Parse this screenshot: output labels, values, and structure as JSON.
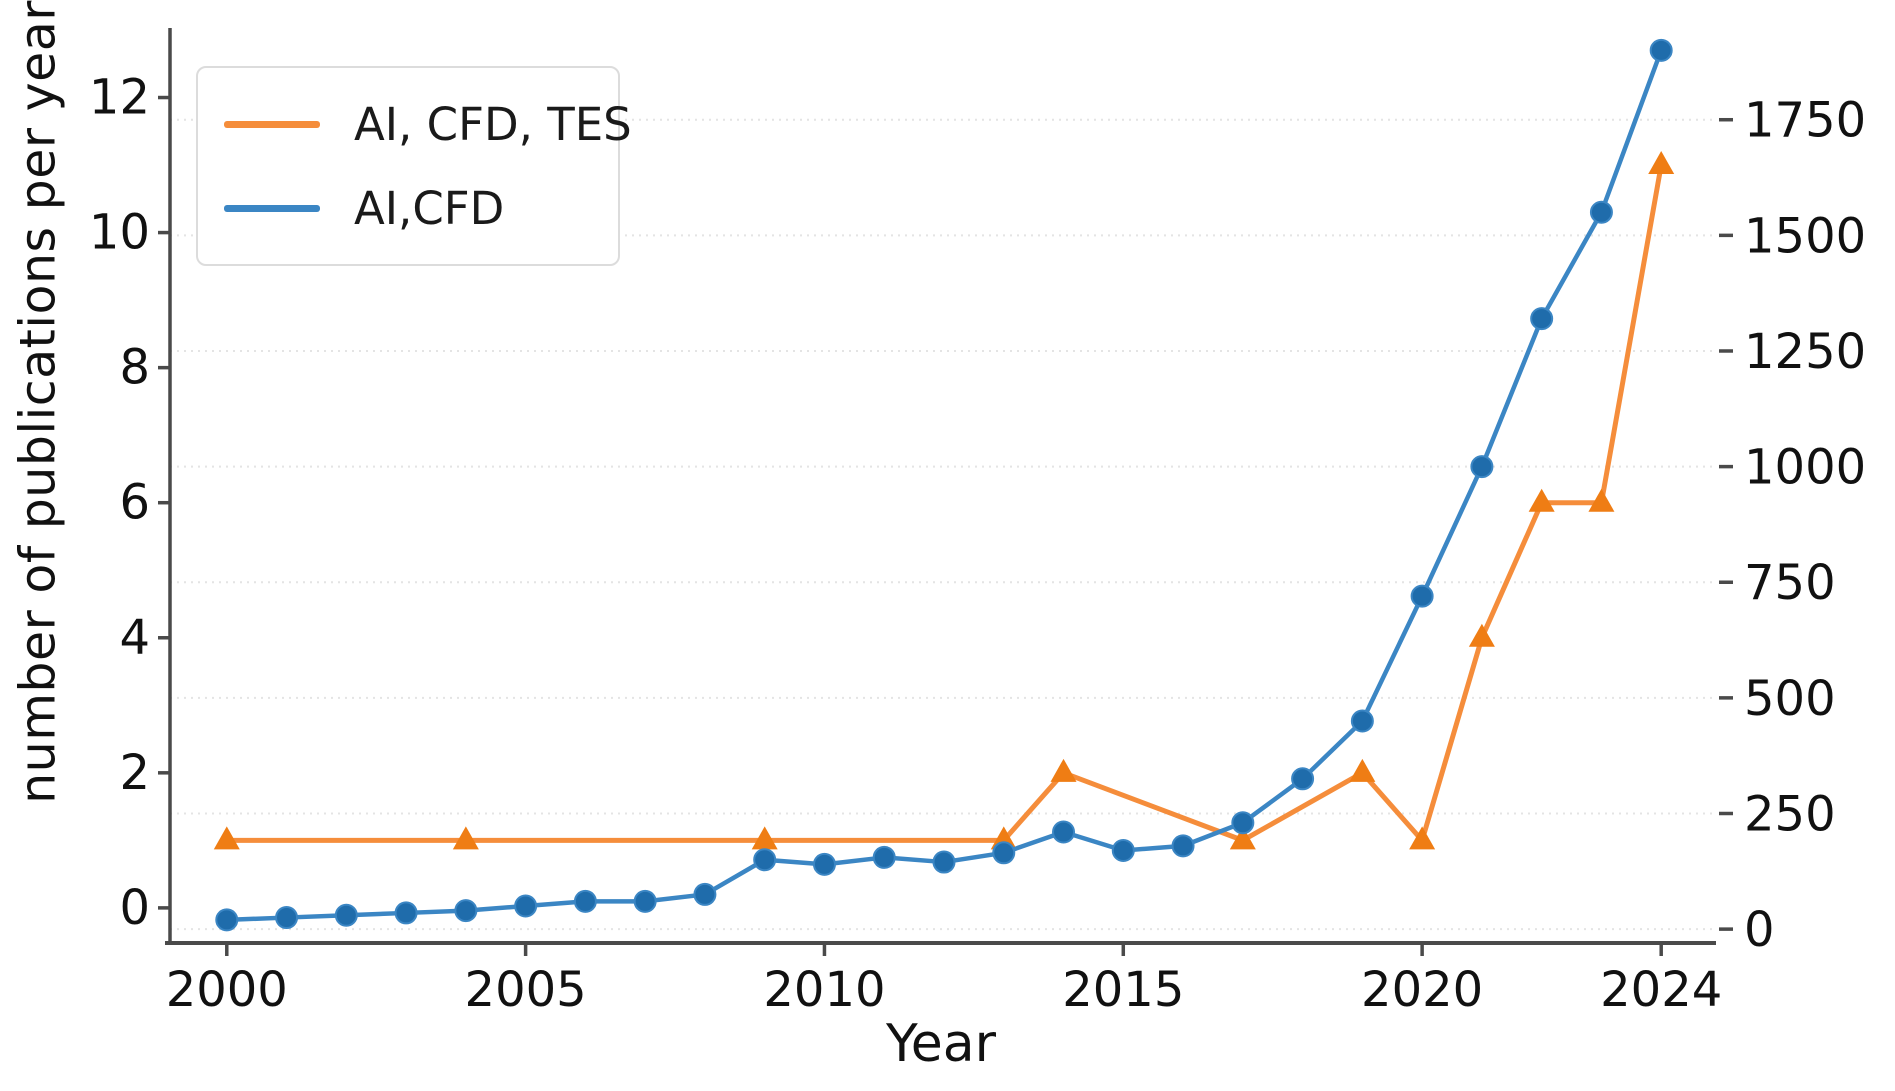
{
  "chart_data": {
    "type": "line",
    "title": "",
    "xlabel": "Year",
    "ylabel_left": "number of publications per year",
    "x_ticks": [
      2000,
      2005,
      2010,
      2015,
      2020,
      2024
    ],
    "left_ticks": [
      0,
      2,
      4,
      6,
      8,
      10,
      12
    ],
    "right_ticks": [
      0,
      250,
      500,
      750,
      1000,
      1250,
      1500,
      1750
    ],
    "xlim": [
      1999.05,
      2024.85
    ],
    "ylim_left": [
      -0.52,
      13.0
    ],
    "ylim_right": [
      -30,
      1944
    ],
    "grid": "horizontal dotted lines aligned to right-axis ticks",
    "legend_position": "upper-left",
    "grid_color": "#e4e4e4",
    "spine_color": "#4a4a4a",
    "text_color": "#111111",
    "series": [
      {
        "name": "AI, CFD, TES",
        "axis": "left",
        "marker": "triangle",
        "color": "#f58d3b",
        "marker_color": "#ef7d14",
        "x": [
          2000,
          2004,
          2009,
          2013,
          2014,
          2017,
          2019,
          2020,
          2021,
          2022,
          2023,
          2024
        ],
        "values": [
          1,
          1,
          1,
          1,
          2,
          1,
          2,
          1,
          4,
          6,
          6,
          11
        ]
      },
      {
        "name": "AI,CFD",
        "axis": "right",
        "marker": "circle",
        "color": "#3b86c4",
        "marker_color": "#1f6cab",
        "x": [
          2000,
          2001,
          2002,
          2003,
          2004,
          2005,
          2006,
          2007,
          2008,
          2009,
          2010,
          2011,
          2012,
          2013,
          2014,
          2015,
          2016,
          2017,
          2018,
          2019,
          2020,
          2021,
          2022,
          2023,
          2024
        ],
        "values": [
          20,
          25,
          30,
          35,
          40,
          50,
          60,
          60,
          75,
          150,
          140,
          155,
          145,
          165,
          210,
          170,
          180,
          230,
          325,
          450,
          720,
          1000,
          1320,
          1550,
          1900
        ]
      }
    ]
  }
}
